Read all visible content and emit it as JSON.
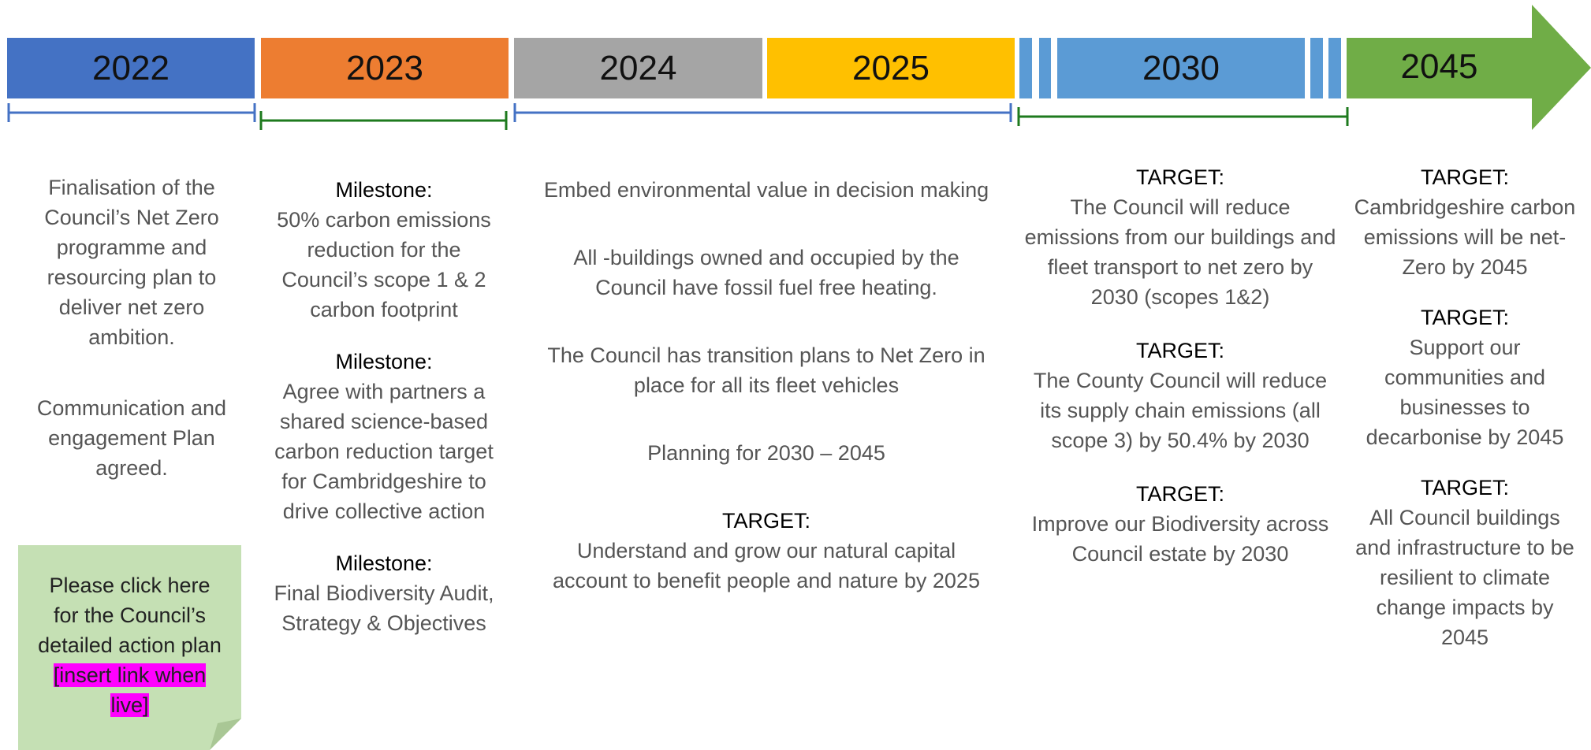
{
  "years": [
    "2022",
    "2023",
    "2024",
    "2025",
    "2030",
    "2045"
  ],
  "columns": [
    {
      "items": [
        {
          "text": "Finalisation of the Council’s Net Zero programme and resourcing plan to deliver net zero ambition."
        },
        {
          "text": "Communication and engagement Plan agreed."
        }
      ]
    },
    {
      "items": [
        {
          "heading": "Milestone:",
          "text": "50% carbon emissions reduction for the Council’s scope 1  & 2 carbon footprint"
        },
        {
          "heading": "Milestone:",
          "text": "Agree  with partners a shared science-based carbon reduction target for Cambridgeshire to drive collective action"
        },
        {
          "heading": "Milestone:",
          "text": "Final  Biodiversity Audit, Strategy & Objectives"
        }
      ]
    },
    {
      "items": [
        {
          "text": "Embed environmental value in decision making"
        },
        {
          "text": "All -buildings owned and occupied by the Council have fossil fuel free heating."
        },
        {
          "text": "The Council has transition plans to Net Zero in place for all its fleet vehicles"
        },
        {
          "text": "Planning for 2030 – 2045"
        },
        {
          "heading": "TARGET:",
          "text": "Understand and grow our natural capital account to benefit people and nature by 2025"
        }
      ]
    },
    {
      "items": [
        {
          "heading": "TARGET:",
          "text": "The Council will reduce emissions from our buildings and fleet transport to net zero by 2030 (scopes 1&2)"
        },
        {
          "heading": "TARGET:",
          "text": "The County Council will reduce its supply chain emissions (all scope 3) by 50.4% by 2030"
        },
        {
          "heading": "TARGET:",
          "text": "Improve our Biodiversity across Council estate by 2030"
        }
      ]
    },
    {
      "items": [
        {
          "heading": "TARGET:",
          "text": "Cambridgeshire carbon emissions will be net-Zero by 2045"
        },
        {
          "heading": "TARGET:",
          "text": "Support our communities and businesses to decarbonise by 2045"
        },
        {
          "heading": "TARGET:",
          "text": "All Council buildings and infrastructure to be resilient to climate change impacts by 2045"
        }
      ]
    }
  ],
  "note": {
    "text": "Please click here for the Council’s detailed action plan",
    "highlight": "[insert link when live]"
  }
}
